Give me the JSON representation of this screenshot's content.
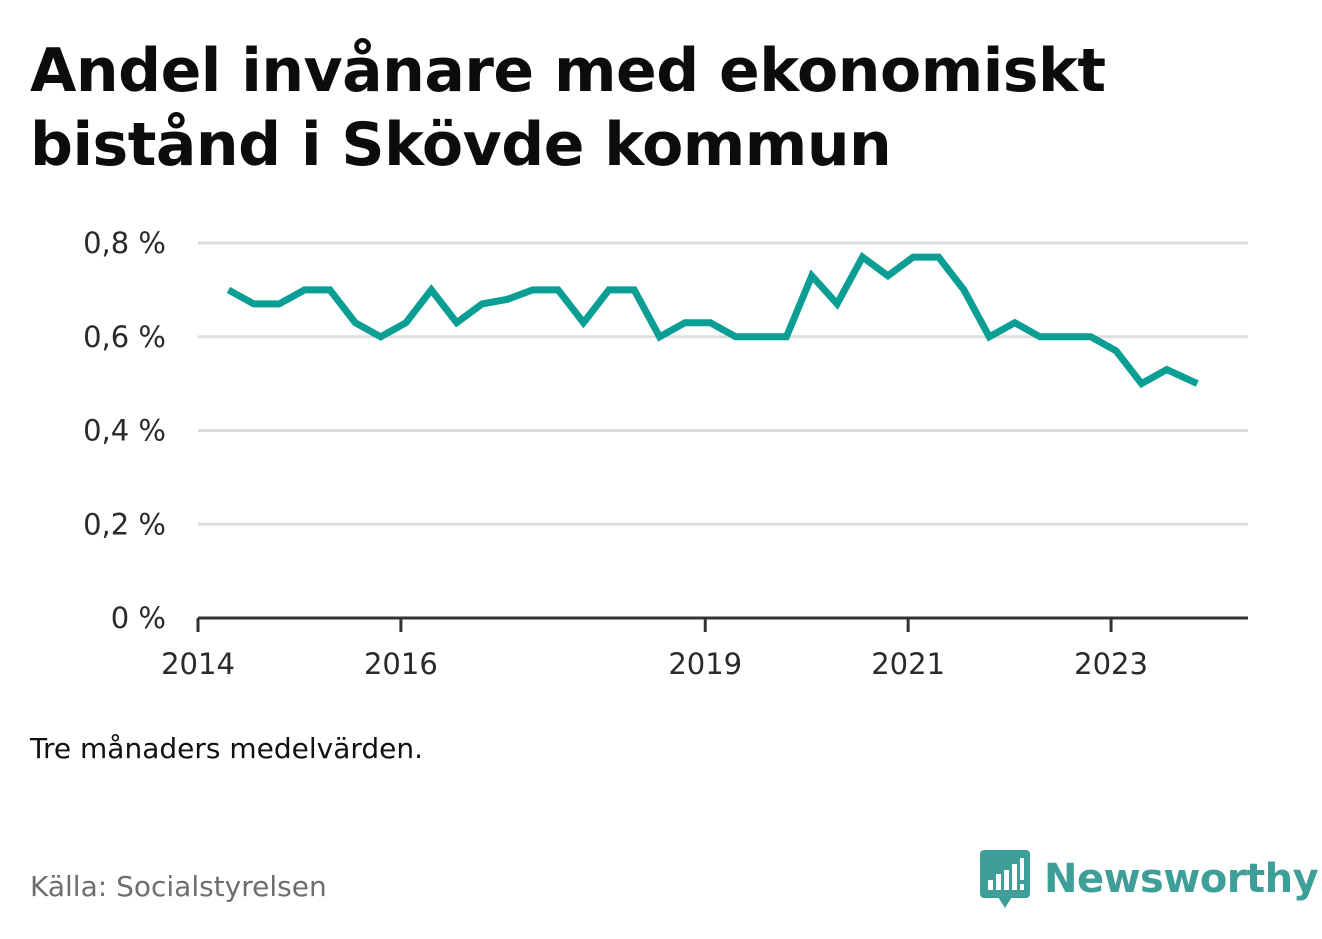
{
  "title": "Andel invånare med ekonomiskt bistånd i Skövde kommun",
  "note": "Tre månaders medelvärden.",
  "source": "Källa: Socialstyrelsen",
  "brand": {
    "name": "Newsworthy",
    "icon": "bar-chart-speech-bubble-icon",
    "color": "#3e9e98"
  },
  "colors": {
    "line": "#0a9e94",
    "grid": "#dddddd",
    "axis": "#333333"
  },
  "chart_data": {
    "type": "line",
    "title": "Andel invånare med ekonomiskt bistånd i Skövde kommun",
    "xlabel": "",
    "ylabel": "",
    "ylim": [
      0,
      0.8
    ],
    "yticks": [
      0,
      0.2,
      0.4,
      0.6,
      0.8
    ],
    "ytick_labels": [
      "0 %",
      "0,2 %",
      "0,4 %",
      "0,6 %",
      "0,8 %"
    ],
    "xlim": [
      2014.0,
      2024.35
    ],
    "xticks": [
      2014,
      2016,
      2019,
      2021,
      2023
    ],
    "xtick_labels": [
      "2014",
      "2016",
      "2019",
      "2021",
      "2023"
    ],
    "grid": true,
    "series": [
      {
        "color": "#0a9e94",
        "x": [
          2014.3,
          2014.55,
          2014.8,
          2015.05,
          2015.3,
          2015.55,
          2015.8,
          2016.05,
          2016.3,
          2016.55,
          2016.8,
          2017.05,
          2017.3,
          2017.55,
          2017.8,
          2018.05,
          2018.3,
          2018.55,
          2018.8,
          2019.05,
          2019.3,
          2019.55,
          2019.8,
          2020.05,
          2020.3,
          2020.55,
          2020.8,
          2021.05,
          2021.3,
          2021.55,
          2021.8,
          2022.05,
          2022.3,
          2022.55,
          2022.8,
          2023.05,
          2023.3,
          2023.55,
          2023.85
        ],
        "values": [
          0.7,
          0.67,
          0.67,
          0.7,
          0.7,
          0.63,
          0.6,
          0.63,
          0.7,
          0.63,
          0.67,
          0.68,
          0.7,
          0.7,
          0.63,
          0.7,
          0.7,
          0.6,
          0.63,
          0.63,
          0.6,
          0.6,
          0.6,
          0.73,
          0.67,
          0.77,
          0.73,
          0.77,
          0.77,
          0.7,
          0.6,
          0.63,
          0.6,
          0.6,
          0.6,
          0.57,
          0.5,
          0.53,
          0.5
        ]
      }
    ]
  }
}
